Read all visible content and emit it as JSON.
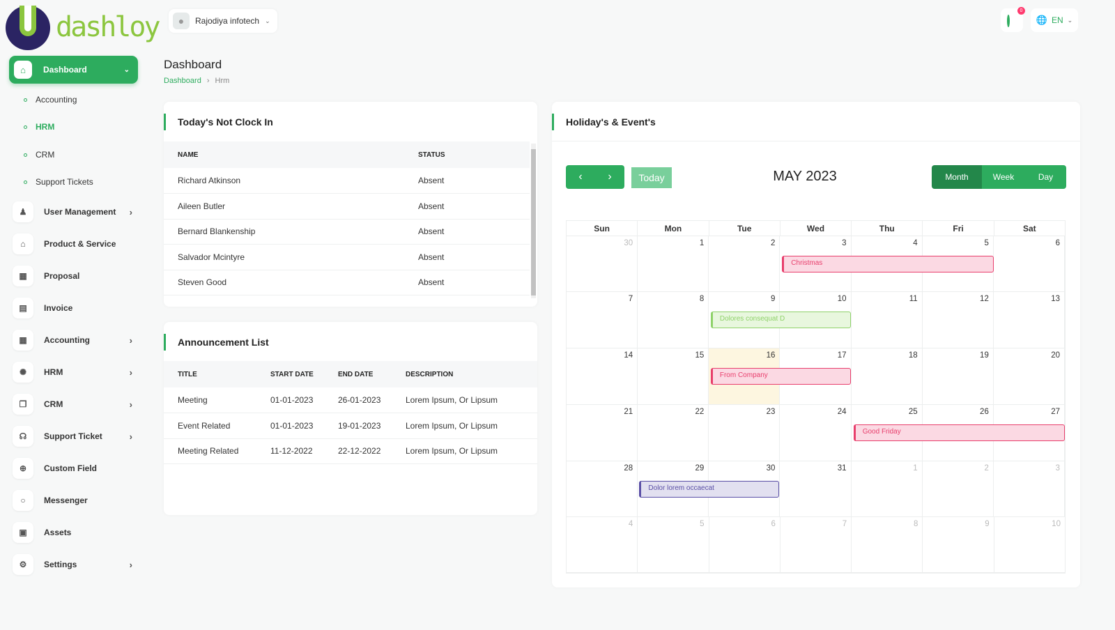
{
  "brand": {
    "name": "dashloy"
  },
  "header": {
    "company": "Rajodiya infotech",
    "notifications": "0",
    "language": "EN"
  },
  "sidebar": {
    "active": "Dashboard",
    "sub_items": [
      "Accounting",
      "HRM",
      "CRM",
      "Support Tickets"
    ],
    "items": [
      {
        "label": "User Management",
        "icon": "users-icon",
        "chev": true
      },
      {
        "label": "Product & Service",
        "icon": "cart-icon",
        "chev": false
      },
      {
        "label": "Proposal",
        "icon": "proposal-icon",
        "chev": false
      },
      {
        "label": "Invoice",
        "icon": "invoice-icon",
        "chev": false
      },
      {
        "label": "Accounting",
        "icon": "grid-icon",
        "chev": true
      },
      {
        "label": "HRM",
        "icon": "hrm-icon",
        "chev": true
      },
      {
        "label": "CRM",
        "icon": "crm-icon",
        "chev": true
      },
      {
        "label": "Support Ticket",
        "icon": "headset-icon",
        "chev": true
      },
      {
        "label": "Custom Field",
        "icon": "plus-circle-icon",
        "chev": false
      },
      {
        "label": "Messenger",
        "icon": "chat-icon",
        "chev": false
      },
      {
        "label": "Assets",
        "icon": "assets-icon",
        "chev": false
      },
      {
        "label": "Settings",
        "icon": "gear-icon",
        "chev": true
      }
    ]
  },
  "page": {
    "title": "Dashboard",
    "breadcrumb": [
      "Dashboard",
      "Hrm"
    ]
  },
  "clockin": {
    "title": "Today's Not Clock In",
    "headers": [
      "NAME",
      "STATUS"
    ],
    "rows": [
      [
        "Richard Atkinson",
        "Absent"
      ],
      [
        "Aileen Butler",
        "Absent"
      ],
      [
        "Bernard Blankenship",
        "Absent"
      ],
      [
        "Salvador Mcintyre",
        "Absent"
      ],
      [
        "Steven Good",
        "Absent"
      ]
    ]
  },
  "announcements": {
    "title": "Announcement List",
    "headers": [
      "TITLE",
      "START DATE",
      "END DATE",
      "DESCRIPTION"
    ],
    "rows": [
      [
        "Meeting",
        "01-01-2023",
        "26-01-2023",
        "Lorem Ipsum, Or Lipsum"
      ],
      [
        "Event Related",
        "01-01-2023",
        "19-01-2023",
        "Lorem Ipsum, Or Lipsum"
      ],
      [
        "Meeting Related",
        "11-12-2022",
        "22-12-2022",
        "Lorem Ipsum, Or Lipsum"
      ]
    ]
  },
  "calendar": {
    "title": "Holiday's & Event's",
    "month": "MAY 2023",
    "today_label": "Today",
    "views": [
      "Month",
      "Week",
      "Day"
    ],
    "active_view": "Month",
    "weekdays": [
      "Sun",
      "Mon",
      "Tue",
      "Wed",
      "Thu",
      "Fri",
      "Sat"
    ],
    "weeks": [
      [
        30,
        1,
        2,
        3,
        4,
        5,
        6
      ],
      [
        7,
        8,
        9,
        10,
        11,
        12,
        13
      ],
      [
        14,
        15,
        16,
        17,
        18,
        19,
        20
      ],
      [
        21,
        22,
        23,
        24,
        25,
        26,
        27
      ],
      [
        28,
        29,
        30,
        31,
        1,
        2,
        3
      ],
      [
        4,
        5,
        6,
        7,
        8,
        9,
        10
      ]
    ],
    "today": {
      "week": 2,
      "day": 2
    },
    "events": [
      {
        "title": "Christmas",
        "week": 0,
        "start": 3,
        "end": 5,
        "color": "#e83e6c",
        "bg": "#fbd9e3"
      },
      {
        "title": "Dolores consequat D",
        "week": 1,
        "start": 2,
        "end": 3,
        "color": "#8fd26a",
        "bg": "#e8f7de"
      },
      {
        "title": "From Company",
        "week": 2,
        "start": 2,
        "end": 3,
        "color": "#e83e6c",
        "bg": "#fbd9e3"
      },
      {
        "title": "Good Friday",
        "week": 3,
        "start": 4,
        "end": 6,
        "color": "#e83e6c",
        "bg": "#fbd9e3"
      },
      {
        "title": "Dolor lorem occaecat",
        "week": 4,
        "start": 1,
        "end": 2,
        "color": "#5a4fa6",
        "bg": "#e2e0f0"
      }
    ]
  },
  "colors": {
    "accent": "#2dac5e"
  }
}
